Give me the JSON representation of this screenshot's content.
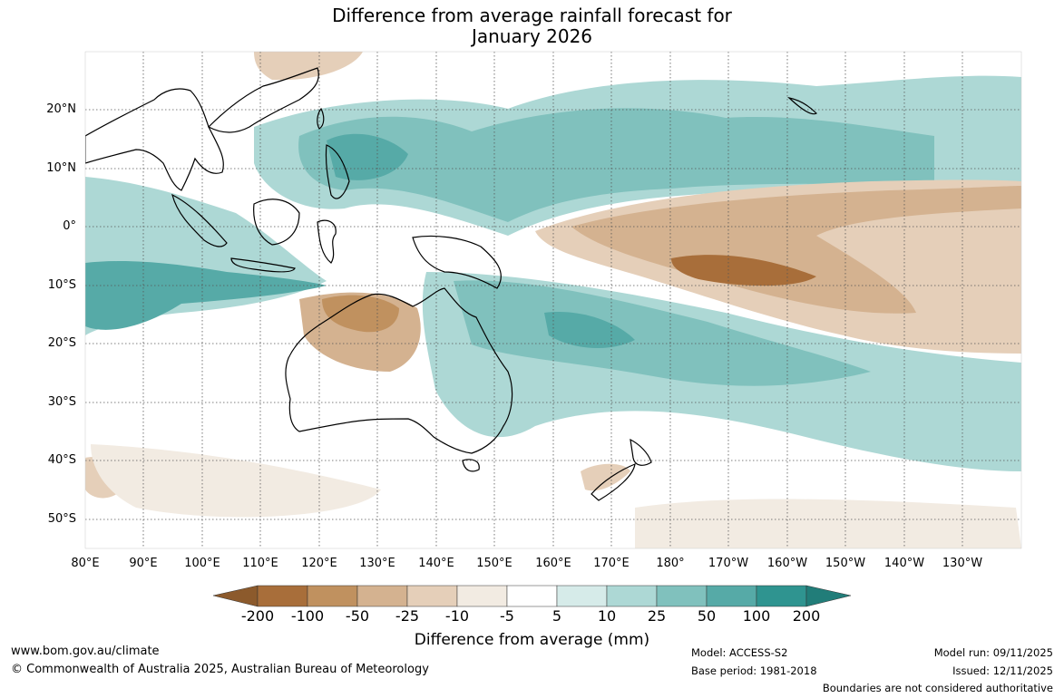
{
  "title": {
    "line1": "Difference from average rainfall forecast for",
    "line2": "January 2026"
  },
  "map": {
    "lat_labels": [
      "20°N",
      "10°N",
      "0°",
      "10°S",
      "20°S",
      "30°S",
      "40°S",
      "50°S"
    ],
    "lon_labels": [
      "80°E",
      "90°E",
      "100°E",
      "110°E",
      "120°E",
      "130°E",
      "140°E",
      "150°E",
      "160°E",
      "170°E",
      "180°",
      "170°W",
      "160°W",
      "150°W",
      "140°W",
      "130°W"
    ]
  },
  "colorbar": {
    "labels": [
      "-200",
      "-100",
      "-50",
      "-25",
      "-10",
      "-5",
      "5",
      "10",
      "25",
      "50",
      "100",
      "200"
    ],
    "colors": {
      "neg200": "#a86e3a",
      "neg100": "#c0915f",
      "neg50": "#d4b290",
      "neg25": "#e5cfb9",
      "neg10": "#f2ebe2",
      "neutral": "#ffffff",
      "pos10": "#d6ebe9",
      "pos25": "#add8d5",
      "pos50": "#80c1bd",
      "pos100": "#56aaa7",
      "pos200": "#2f9490",
      "pos_extreme": "#217d79",
      "neg_extreme": "#8c5a2c"
    },
    "axis_title": "Difference from average (mm)"
  },
  "footer": {
    "website": "www.bom.gov.au/climate",
    "copyright": "© Commonwealth of Australia 2025, Australian Bureau of Meteorology",
    "model": "Model: ACCESS-S2",
    "base_period": "Base period: 1981-2018",
    "model_run": "Model run: 09/11/2025",
    "issued": "Issued: 12/11/2025",
    "disclaimer": "Boundaries are not considered authoritative"
  }
}
